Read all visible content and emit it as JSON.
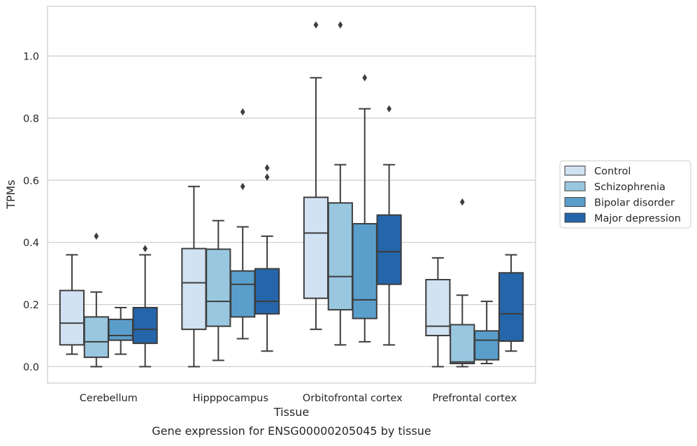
{
  "chart_data": {
    "type": "box",
    "caption": "Gene expression for ENSG00000205045 by tissue",
    "xlabel": "Tissue",
    "ylabel": "TPMs",
    "ylim": [
      -0.053,
      1.16
    ],
    "yticks": [
      0.0,
      0.2,
      0.4,
      0.6,
      0.8,
      1.0
    ],
    "ytick_labels": [
      "0.0",
      "0.2",
      "0.4",
      "0.6",
      "0.8",
      "1.0"
    ],
    "grid": "horizontal",
    "legend_position": "right",
    "categories": [
      "Cerebellum",
      "Hipppocampus",
      "Orbitofrontal cortex",
      "Prefrontal cortex"
    ],
    "series": [
      {
        "name": "Control",
        "color": "#d1e2f2",
        "boxes": [
          {
            "whislo": 0.04,
            "q1": 0.07,
            "med": 0.14,
            "q3": 0.245,
            "whishi": 0.36,
            "fliers": []
          },
          {
            "whislo": 0.0,
            "q1": 0.12,
            "med": 0.27,
            "q3": 0.38,
            "whishi": 0.58,
            "fliers": []
          },
          {
            "whislo": 0.12,
            "q1": 0.22,
            "med": 0.43,
            "q3": 0.545,
            "whishi": 0.93,
            "fliers": [
              1.1
            ]
          },
          {
            "whislo": 0.0,
            "q1": 0.1,
            "med": 0.13,
            "q3": 0.28,
            "whishi": 0.35,
            "fliers": []
          }
        ]
      },
      {
        "name": "Schizophrenia",
        "color": "#9ac7e0",
        "boxes": [
          {
            "whislo": 0.0,
            "q1": 0.03,
            "med": 0.08,
            "q3": 0.16,
            "whishi": 0.24,
            "fliers": [
              0.42
            ]
          },
          {
            "whislo": 0.02,
            "q1": 0.13,
            "med": 0.21,
            "q3": 0.378,
            "whishi": 0.47,
            "fliers": []
          },
          {
            "whislo": 0.07,
            "q1": 0.183,
            "med": 0.29,
            "q3": 0.527,
            "whishi": 0.65,
            "fliers": [
              1.1
            ]
          },
          {
            "whislo": 0.0,
            "q1": 0.01,
            "med": 0.015,
            "q3": 0.135,
            "whishi": 0.23,
            "fliers": [
              0.53
            ]
          }
        ]
      },
      {
        "name": "Bipolar disorder",
        "color": "#5a9ecc",
        "boxes": [
          {
            "whislo": 0.04,
            "q1": 0.085,
            "med": 0.1,
            "q3": 0.152,
            "whishi": 0.19,
            "fliers": []
          },
          {
            "whislo": 0.09,
            "q1": 0.16,
            "med": 0.265,
            "q3": 0.308,
            "whishi": 0.45,
            "fliers": [
              0.58,
              0.82
            ]
          },
          {
            "whislo": 0.08,
            "q1": 0.155,
            "med": 0.215,
            "q3": 0.46,
            "whishi": 0.83,
            "fliers": [
              0.93
            ]
          },
          {
            "whislo": 0.01,
            "q1": 0.022,
            "med": 0.085,
            "q3": 0.115,
            "whishi": 0.21,
            "fliers": []
          }
        ]
      },
      {
        "name": "Major depression",
        "color": "#2565a9",
        "boxes": [
          {
            "whislo": 0.0,
            "q1": 0.075,
            "med": 0.12,
            "q3": 0.19,
            "whishi": 0.36,
            "fliers": [
              0.38
            ]
          },
          {
            "whislo": 0.05,
            "q1": 0.17,
            "med": 0.21,
            "q3": 0.315,
            "whishi": 0.42,
            "fliers": [
              0.61,
              0.64
            ]
          },
          {
            "whislo": 0.07,
            "q1": 0.265,
            "med": 0.37,
            "q3": 0.488,
            "whishi": 0.65,
            "fliers": [
              0.83
            ]
          },
          {
            "whislo": 0.05,
            "q1": 0.082,
            "med": 0.17,
            "q3": 0.302,
            "whishi": 0.36,
            "fliers": []
          }
        ]
      }
    ],
    "colors": {
      "grid": "#cccccc",
      "frame": "#cccccc",
      "line": "#3d3d3d",
      "text": "#262626"
    }
  }
}
